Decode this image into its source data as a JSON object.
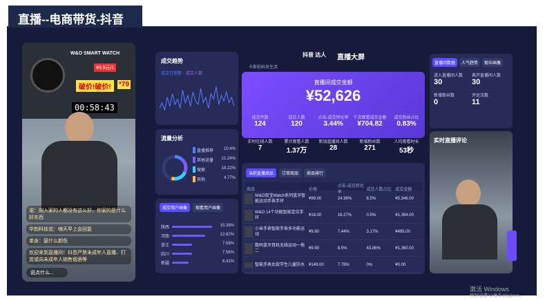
{
  "header": {
    "title": "直播--电商带货-抖音"
  },
  "stream": {
    "brand": "W&O SMART WATCH",
    "promo": "破价!破价!",
    "price": "¥9.9元/1",
    "big": "*79",
    "timer": "00:58:43",
    "comments": [
      "诺：刚入家的人都没有这么好，你家的是什么好东西",
      "华韵科技说：嗨天早上会回复",
      "单身：瑟什么颜色",
      "欢迎来到直播间！抖音严禁未成年人直播、打赏或向未成年人销售烟酒等"
    ],
    "input": "说点什么..."
  },
  "trend": {
    "title": "成交趋势",
    "legend": [
      "成交订单数",
      "成交人数"
    ],
    "ylim": [
      0,
      100
    ],
    "values": [
      20,
      35,
      15,
      50,
      25,
      60,
      30,
      45,
      20,
      70,
      35,
      55,
      25,
      65,
      40,
      30,
      75,
      35,
      50,
      20,
      60,
      45,
      80,
      30,
      55,
      40,
      65,
      35,
      50,
      25
    ]
  },
  "traffic": {
    "title": "流量分析",
    "items": [
      {
        "name": "直播推荐",
        "share": 10.4,
        "label": "10.4%"
      },
      {
        "name": "其他流量",
        "share": 21.24,
        "label": "21.24%"
      },
      {
        "name": "搜索",
        "share": 18.22,
        "label": "18.22%"
      },
      {
        "name": "其他",
        "share": 4.77,
        "label": "4.77%"
      }
    ]
  },
  "portrait": {
    "tabs": [
      "成交用户画像",
      "观看用户画像"
    ],
    "xlim": [
      0,
      18
    ],
    "items": [
      {
        "name": "陕西",
        "share": 15.38,
        "label": "15.38%"
      },
      {
        "name": "河南",
        "share": 12.82,
        "label": "12.82%"
      },
      {
        "name": "浙江",
        "share": 7.69,
        "label": "7.69%"
      },
      {
        "name": "四川",
        "share": 7.56,
        "label": "7.56%"
      },
      {
        "name": "新疆",
        "share": 6.41,
        "label": "6.41%"
      }
    ]
  },
  "center": {
    "logo": "抖音 达人",
    "title": "直播大屏",
    "shop": "卡斯柏科技生活",
    "amount_label": "直播间成交金额",
    "amount": "¥52,626",
    "metrics": [
      {
        "label": "成交件数",
        "value": "124"
      },
      {
        "label": "成交人数",
        "value": "120"
      },
      {
        "label": "点击-成交转化率",
        "value": "3.44%"
      },
      {
        "label": "千次观看成交金额",
        "value": "¥704.82"
      },
      {
        "label": "成交粉丝占比",
        "value": "0.83%"
      },
      {
        "label": "实时在线人数",
        "value": "7"
      },
      {
        "label": "累计观看人数",
        "value": "1.37万"
      },
      {
        "label": "新加直播间人数",
        "value": "28"
      },
      {
        "label": "新增粉丝数",
        "value": "271"
      },
      {
        "label": "人均观看时长",
        "value": "53秒"
      }
    ]
  },
  "table": {
    "tabs": [
      "当前直播商品",
      "订单商品",
      "商品排行"
    ],
    "columns": [
      "商品",
      "价格",
      "点击-成交转化率",
      "成交人数占比",
      "成交金额"
    ],
    "rows": [
      [
        "W&O双宝Watch系列蓝牙智能运动手表手环",
        "¥99.00",
        "24.36%",
        "8.5%",
        "¥5,346.00"
      ],
      [
        "W&O 14个功能智能定位手环",
        "¥18.00",
        "16.27%",
        "0.5%",
        "¥1,394.00"
      ],
      [
        "小米手表智能手表多功能运动",
        "¥9.90",
        "7.44%",
        "3.17%",
        "¥495.00"
      ],
      [
        "数码蓝牙耳机无线运动一拖二",
        "¥9.90",
        "8.5%",
        "43.86%",
        "¥1,360.00"
      ],
      [
        "智能手表女款学生儿童防水",
        "¥149.00",
        "7.78%",
        "0%",
        "¥0.00"
      ]
    ]
  },
  "right": {
    "tabs": [
      "直播间数据",
      "人气趋势",
      "观众画像"
    ],
    "stats": [
      {
        "label": "进入直播间人数",
        "value": "30"
      },
      {
        "label": "离开直播间人数",
        "value": "30"
      },
      {
        "label": "新增粉丝数",
        "value": "0"
      },
      {
        "label": "评论次数",
        "value": "11"
      }
    ],
    "comments_title": "实时直播评论"
  },
  "watermark": {
    "line1": "激活 Windows",
    "line2": "转到“设置”以激活 Windows。"
  }
}
